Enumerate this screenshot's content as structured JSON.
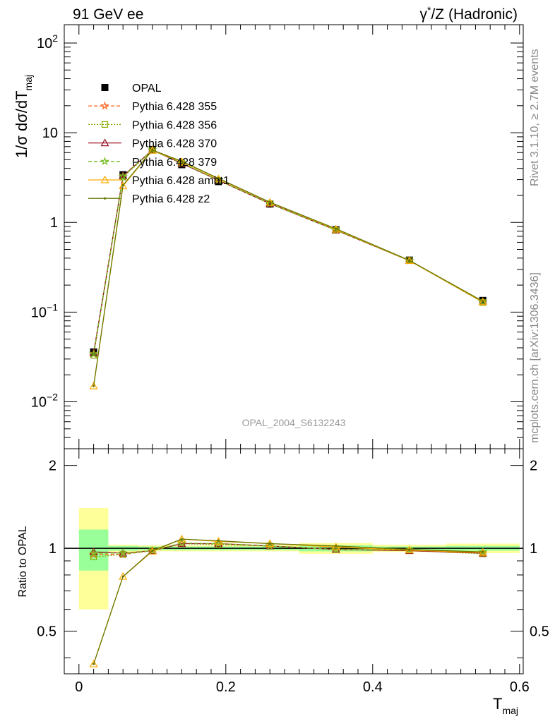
{
  "header": {
    "left": "91 GeV ee",
    "right_sup": "*",
    "right_pre": "γ",
    "right_post": "/Z (Hadronic)"
  },
  "side": {
    "rivet": "Rivet 3.1.10, ≥ 2.7M events",
    "mcplots": "mcplots.cern.ch [arXiv:1306.3436]"
  },
  "watermark": "OPAL_2004_S6132243",
  "axes": {
    "ylabel_main": "1/σ dσ/dT",
    "ylabel_main_sub": "maj",
    "ylabel_ratio": "Ratio to OPAL",
    "xlabel": "T",
    "xlabel_sub": "maj",
    "main_yticks": [
      {
        "value": 0.01,
        "base": "10",
        "exp": "−2"
      },
      {
        "value": 0.1,
        "base": "10",
        "exp": "−1"
      },
      {
        "value": 1,
        "base": "1",
        "exp": ""
      },
      {
        "value": 10,
        "base": "10",
        "exp": ""
      },
      {
        "value": 100,
        "base": "10",
        "exp": "2"
      }
    ],
    "ratio_yticks": [
      "0.5",
      "1",
      "2"
    ],
    "xticks": [
      "0",
      "0.2",
      "0.4",
      "0.6"
    ]
  },
  "colors": {
    "OPAL": "#000000",
    "p355": "#ff6622",
    "p356": "#88aa00",
    "p370": "#991122",
    "p379": "#77bb22",
    "ambt1": "#ffaa00",
    "z2": "#667700",
    "band_inner": "#99ff99",
    "band_outer": "#ffff99"
  },
  "chart_data": {
    "type": "line",
    "xlabel": "T_maj",
    "ylabel": "1/σ dσ/dT_maj",
    "yscale": "log",
    "xlim": [
      -0.02,
      0.605
    ],
    "ylim": [
      0.003,
      160
    ],
    "ratio_ylim": [
      0.35,
      2.3
    ],
    "legend_position": "upper-left",
    "x": [
      0.02,
      0.06,
      0.1,
      0.14,
      0.19,
      0.26,
      0.35,
      0.45,
      0.55
    ],
    "bins": [
      [
        0,
        0.04
      ],
      [
        0.04,
        0.08
      ],
      [
        0.08,
        0.12
      ],
      [
        0.12,
        0.16
      ],
      [
        0.16,
        0.22
      ],
      [
        0.22,
        0.3
      ],
      [
        0.3,
        0.4
      ],
      [
        0.4,
        0.5
      ],
      [
        0.5,
        0.6
      ]
    ],
    "band_inner": [
      [
        0.83,
        1.17
      ],
      [
        0.98,
        1.02
      ],
      [
        0.985,
        1.015
      ],
      [
        0.985,
        1.015
      ],
      [
        0.985,
        1.015
      ],
      [
        0.985,
        1.015
      ],
      [
        0.975,
        1.025
      ],
      [
        0.985,
        1.015
      ],
      [
        0.98,
        1.02
      ]
    ],
    "band_outer": [
      [
        0.6,
        1.4
      ],
      [
        0.97,
        1.03
      ],
      [
        0.975,
        1.025
      ],
      [
        0.975,
        1.025
      ],
      [
        0.975,
        1.025
      ],
      [
        0.975,
        1.025
      ],
      [
        0.955,
        1.045
      ],
      [
        0.97,
        1.03
      ],
      [
        0.96,
        1.04
      ]
    ],
    "series": [
      {
        "name": "OPAL",
        "key": "OPAL",
        "marker": "square",
        "dash": "",
        "values": [
          0.036,
          3.4,
          6.5,
          4.4,
          2.85,
          1.6,
          0.83,
          0.38,
          0.135
        ],
        "ratio": []
      },
      {
        "name": "Pythia 6.428 355",
        "key": "p355",
        "marker": "star",
        "dash": "5,3",
        "values": [
          0.034,
          3.25,
          6.4,
          4.55,
          2.95,
          1.62,
          0.82,
          0.375,
          0.13
        ],
        "ratio": [
          0.95,
          0.95,
          0.98,
          1.04,
          1.04,
          1.02,
          0.99,
          0.985,
          0.96
        ]
      },
      {
        "name": "Pythia 6.428 356",
        "key": "p356",
        "marker": "square-open",
        "dash": "2,2",
        "values": [
          0.033,
          3.2,
          6.35,
          4.6,
          2.95,
          1.62,
          0.82,
          0.375,
          0.128
        ],
        "ratio": [
          0.93,
          0.95,
          0.98,
          1.04,
          1.03,
          1.02,
          0.99,
          0.98,
          0.955
        ]
      },
      {
        "name": "Pythia 6.428 370",
        "key": "p370",
        "marker": "triangle",
        "dash": "",
        "values": [
          0.035,
          3.3,
          6.4,
          4.55,
          2.95,
          1.62,
          0.82,
          0.375,
          0.13
        ],
        "ratio": [
          0.97,
          0.96,
          0.98,
          1.04,
          1.04,
          1.02,
          0.99,
          0.98,
          0.96
        ]
      },
      {
        "name": "Pythia 6.428 379",
        "key": "p379",
        "marker": "star",
        "dash": "5,3",
        "values": [
          0.034,
          3.25,
          6.4,
          4.6,
          2.95,
          1.62,
          0.82,
          0.375,
          0.13
        ],
        "ratio": [
          0.96,
          0.96,
          0.98,
          1.045,
          1.04,
          1.02,
          0.99,
          0.985,
          0.97
        ]
      },
      {
        "name": "Pythia 6.428 ambt1",
        "key": "ambt1",
        "marker": "triangle",
        "dash": "",
        "values": [
          0.015,
          2.55,
          6.35,
          4.75,
          3.05,
          1.67,
          0.84,
          0.375,
          0.13
        ],
        "ratio": [
          0.38,
          0.79,
          0.975,
          1.08,
          1.06,
          1.04,
          1.01,
          0.985,
          0.965
        ]
      },
      {
        "name": "Pythia 6.428 z2",
        "key": "z2",
        "marker": "dot",
        "dash": "",
        "values": [
          0.015,
          2.6,
          6.4,
          4.8,
          3.1,
          1.68,
          0.85,
          0.378,
          0.132
        ],
        "ratio": [
          0.38,
          0.79,
          0.98,
          1.08,
          1.065,
          1.04,
          1.02,
          0.99,
          0.97
        ]
      }
    ]
  }
}
